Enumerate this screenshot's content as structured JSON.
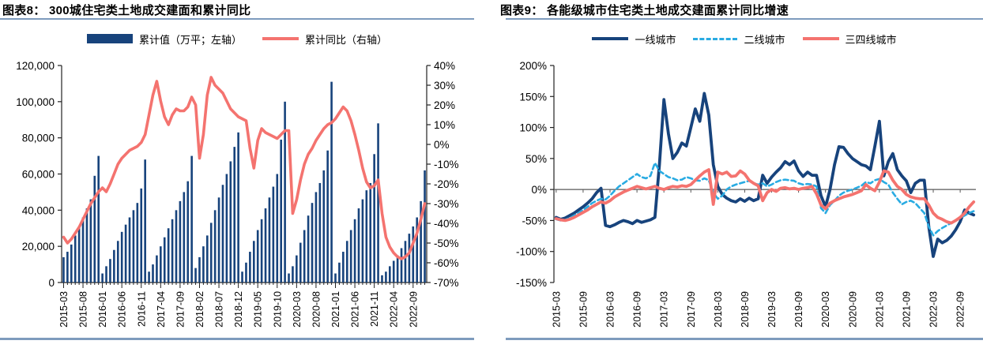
{
  "page": {
    "background": "#ffffff",
    "rule_color": "#7E9BBD"
  },
  "chart_data": [
    {
      "type": "bar",
      "title": "图表8： 300城住宅类土地成交建面和累计同比",
      "x_frequency": "monthly",
      "x_start": "2015-03",
      "x_tick_labels": [
        "2015-03",
        "2015-08",
        "2016-01",
        "2016-06",
        "2016-11",
        "2017-04",
        "2017-09",
        "2018-02",
        "2018-07",
        "2018-12",
        "2019-05",
        "2019-10",
        "2020-03",
        "2020-08",
        "2021-01",
        "2021-06",
        "2021-11",
        "2022-04",
        "2022-09"
      ],
      "x_tick_every_months": 5,
      "left_axis": {
        "min": 0,
        "max": 120000,
        "tick_step": 20000,
        "tick_labels": [
          "120,000",
          "100,000",
          "80,000",
          "60,000",
          "40,000",
          "20,000",
          "0"
        ]
      },
      "right_axis": {
        "min": -70,
        "max": 40,
        "tick_step": 10,
        "unit": "%",
        "tick_labels": [
          "40%",
          "30%",
          "20%",
          "10%",
          "0%",
          "-10%",
          "-20%",
          "-30%",
          "-40%",
          "-50%",
          "-60%",
          "-70%"
        ]
      },
      "series": [
        {
          "name": "累计值（万平；左轴）",
          "type": "bar",
          "axis": "left",
          "color": "#17437C",
          "values": [
            14000,
            17000,
            21000,
            26000,
            31000,
            36000,
            41000,
            46000,
            59000,
            70000,
            5000,
            9000,
            13000,
            18000,
            23000,
            28000,
            32000,
            36000,
            40000,
            44000,
            52000,
            68000,
            6000,
            10000,
            15000,
            20000,
            25000,
            30000,
            35000,
            40000,
            45000,
            50000,
            56000,
            70000,
            8000,
            14000,
            20000,
            26000,
            33000,
            40000,
            47000,
            54000,
            60000,
            67000,
            75000,
            83000,
            6000,
            11000,
            17000,
            23000,
            29000,
            35000,
            41000,
            47000,
            53000,
            60000,
            79000,
            100000,
            5000,
            9000,
            15000,
            22000,
            29000,
            37000,
            44000,
            50000,
            55000,
            62000,
            73000,
            111000,
            5000,
            11000,
            17000,
            23000,
            29000,
            35000,
            41000,
            46000,
            51000,
            55000,
            71000,
            88000,
            4000,
            6000,
            9000,
            12000,
            15000,
            19000,
            23000,
            27000,
            31000,
            36000,
            45000,
            62000
          ]
        },
        {
          "name": "累计同比（右轴）",
          "type": "line",
          "axis": "right",
          "color": "#F4736F",
          "values_pct": [
            -47,
            -50,
            -48,
            -45,
            -42,
            -38,
            -34,
            -30,
            -27,
            -24,
            -22,
            -24,
            -20,
            -15,
            -10,
            -7,
            -5,
            -3,
            -2,
            -1,
            1,
            5,
            15,
            25,
            32,
            22,
            14,
            10,
            15,
            18,
            17,
            17,
            19,
            24,
            20,
            -7,
            5,
            25,
            34,
            30,
            28,
            26,
            22,
            18,
            16,
            14,
            13,
            12,
            -2,
            -12,
            2,
            8,
            6,
            5,
            4,
            3,
            5,
            7,
            7,
            -35,
            -28,
            -18,
            -10,
            -5,
            -2,
            2,
            5,
            8,
            10,
            11,
            13,
            16,
            19,
            17,
            12,
            5,
            -3,
            -12,
            -19,
            -22,
            -21,
            -18,
            -35,
            -47,
            -52,
            -55,
            -57,
            -58,
            -57,
            -55,
            -50,
            -45,
            -38,
            -30
          ]
        }
      ]
    },
    {
      "type": "line",
      "title": "图表9： 各能级城市住宅类土地成交建面累计同比增速",
      "x_frequency": "monthly",
      "x_start": "2015-03",
      "x_tick_labels": [
        "2015-03",
        "2015-09",
        "2016-03",
        "2016-09",
        "2017-03",
        "2017-09",
        "2018-03",
        "2018-09",
        "2019-03",
        "2019-09",
        "2020-03",
        "2020-09",
        "2021-03",
        "2021-09",
        "2022-03",
        "2022-09"
      ],
      "x_tick_every_months": 6,
      "y_axis": {
        "min": -150,
        "max": 200,
        "tick_step": 50,
        "unit": "%",
        "tick_labels": [
          "200%",
          "150%",
          "100%",
          "50%",
          "0%",
          "-50%",
          "-100%",
          "-150%"
        ]
      },
      "series": [
        {
          "name": "一线城市",
          "color": "#17437C",
          "dash": false,
          "values_pct": [
            -45,
            -48,
            -46,
            -42,
            -38,
            -33,
            -28,
            -22,
            -15,
            -5,
            2,
            -58,
            -60,
            -57,
            -53,
            -50,
            -52,
            -55,
            -50,
            -53,
            -51,
            -49,
            -45,
            40,
            145,
            90,
            50,
            60,
            75,
            70,
            100,
            130,
            110,
            155,
            120,
            40,
            5,
            -8,
            -14,
            -18,
            -20,
            -15,
            -19,
            -14,
            -18,
            -15,
            23,
            10,
            20,
            28,
            35,
            45,
            40,
            46,
            30,
            21,
            28,
            23,
            23,
            -10,
            -28,
            0,
            40,
            69,
            68,
            58,
            50,
            45,
            40,
            38,
            32,
            70,
            110,
            22,
            45,
            58,
            32,
            22,
            14,
            -5,
            10,
            15,
            15,
            -60,
            -108,
            -80,
            -86,
            -82,
            -75,
            -65,
            -52,
            -33,
            -38,
            -41
          ]
        },
        {
          "name": "二线城市",
          "color": "#29ABE2",
          "dash": true,
          "values_pct": [
            -48,
            -50,
            -49,
            -46,
            -42,
            -38,
            -33,
            -28,
            -22,
            -18,
            -15,
            -16,
            -10,
            -2,
            5,
            10,
            15,
            20,
            25,
            20,
            18,
            22,
            43,
            30,
            25,
            20,
            18,
            15,
            16,
            20,
            18,
            15,
            14,
            18,
            15,
            -5,
            -15,
            -10,
            0,
            5,
            8,
            10,
            12,
            14,
            10,
            8,
            10,
            5,
            8,
            12,
            15,
            16,
            15,
            14,
            10,
            8,
            9,
            8,
            5,
            -30,
            -38,
            -25,
            -18,
            -10,
            -5,
            -2,
            0,
            3,
            6,
            12,
            10,
            15,
            17,
            12,
            8,
            -5,
            -15,
            -24,
            -20,
            -18,
            -22,
            -30,
            -38,
            -60,
            -74,
            -67,
            -62,
            -58,
            -54,
            -50,
            -46,
            -42,
            -38,
            -35
          ]
        },
        {
          "name": "三四线城市",
          "color": "#F4736F",
          "dash": false,
          "values_pct": [
            -47,
            -49,
            -50,
            -48,
            -45,
            -41,
            -37,
            -33,
            -28,
            -24,
            -20,
            -22,
            -18,
            -12,
            -8,
            -4,
            -1,
            2,
            5,
            3,
            1,
            3,
            5,
            2,
            0,
            3,
            5,
            4,
            6,
            5,
            8,
            15,
            22,
            28,
            32,
            -24,
            28,
            25,
            28,
            21,
            22,
            30,
            25,
            15,
            10,
            6,
            -18,
            -5,
            0,
            -3,
            2,
            3,
            1,
            2,
            0,
            2,
            3,
            5,
            -7,
            -25,
            -31,
            -22,
            -18,
            -15,
            -12,
            -10,
            -8,
            -5,
            -2,
            8,
            2,
            -2,
            12,
            30,
            28,
            15,
            5,
            0,
            -8,
            -12,
            -14,
            -15,
            -15,
            -25,
            -38,
            -45,
            -48,
            -52,
            -54,
            -50,
            -45,
            -38,
            -28,
            -20
          ]
        }
      ]
    }
  ]
}
